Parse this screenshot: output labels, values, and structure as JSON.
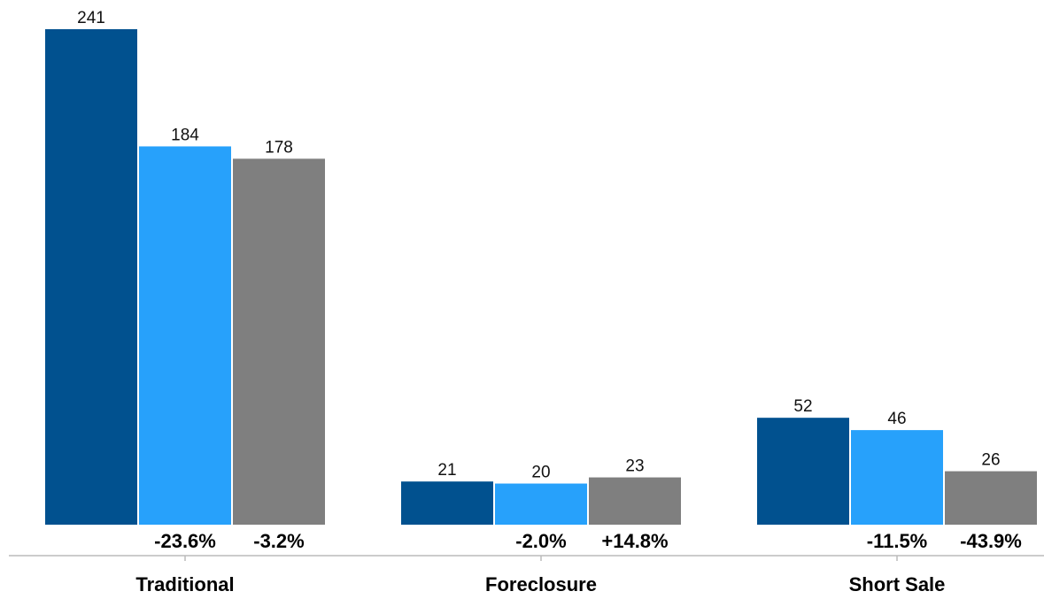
{
  "chart_data": {
    "type": "bar",
    "categories": [
      "Traditional",
      "Foreclosure",
      "Short Sale"
    ],
    "series": [
      {
        "values": [
          241,
          21,
          52
        ],
        "color": "#01518f"
      },
      {
        "values": [
          184,
          20,
          46
        ],
        "color": "#27a1fb"
      },
      {
        "values": [
          178,
          23,
          26
        ],
        "color": "#7f7f7f"
      }
    ],
    "change_labels": [
      [
        "-23.6%",
        "-3.2%"
      ],
      [
        "-2.0%",
        "+14.8%"
      ],
      [
        "-11.5%",
        "-43.9%"
      ]
    ],
    "ylim": [
      0,
      241
    ],
    "grid": false,
    "legend": "none",
    "axis_color": "#bbbbbb"
  }
}
